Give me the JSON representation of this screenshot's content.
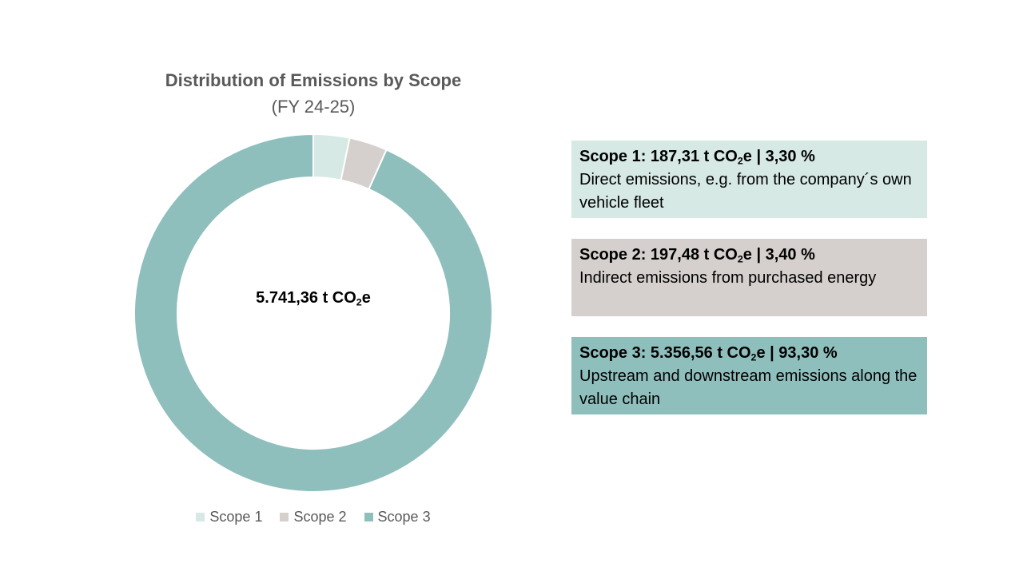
{
  "chart_data": {
    "type": "pie",
    "title": "Distribution of Emissions by Scope",
    "subtitle": "(FY 24-25)",
    "center_label": {
      "prefix": "5.741,36 t CO",
      "sub": "2",
      "suffix": "e"
    },
    "categories": [
      "Scope 1",
      "Scope 2",
      "Scope 3"
    ],
    "values": [
      187.31,
      197.48,
      5356.56
    ],
    "percent": [
      3.3,
      3.4,
      93.3
    ],
    "colors": [
      "#d6e9e5",
      "#d5d0cd",
      "#8fbfbd"
    ],
    "legend": "bottom"
  },
  "cards": [
    {
      "head_prefix": "Scope 1: 187,31 t CO",
      "head_sub": "2",
      "head_suffix": "e | 3,30 %",
      "desc": "Direct emissions, e.g. from the company´s own vehicle fleet",
      "color": "#d6e9e5"
    },
    {
      "head_prefix": "Scope 2: 197,48 t CO",
      "head_sub": "2",
      "head_suffix": "e | 3,40 %",
      "desc": "Indirect emissions from purchased energy",
      "color": "#d5d0cd"
    },
    {
      "head_prefix": "Scope 3: 5.356,56 t CO",
      "head_sub": "2",
      "head_suffix": "e | 93,30 %",
      "desc": "Upstream and downstream emissions along the value chain",
      "color": "#8fbfbd"
    }
  ]
}
